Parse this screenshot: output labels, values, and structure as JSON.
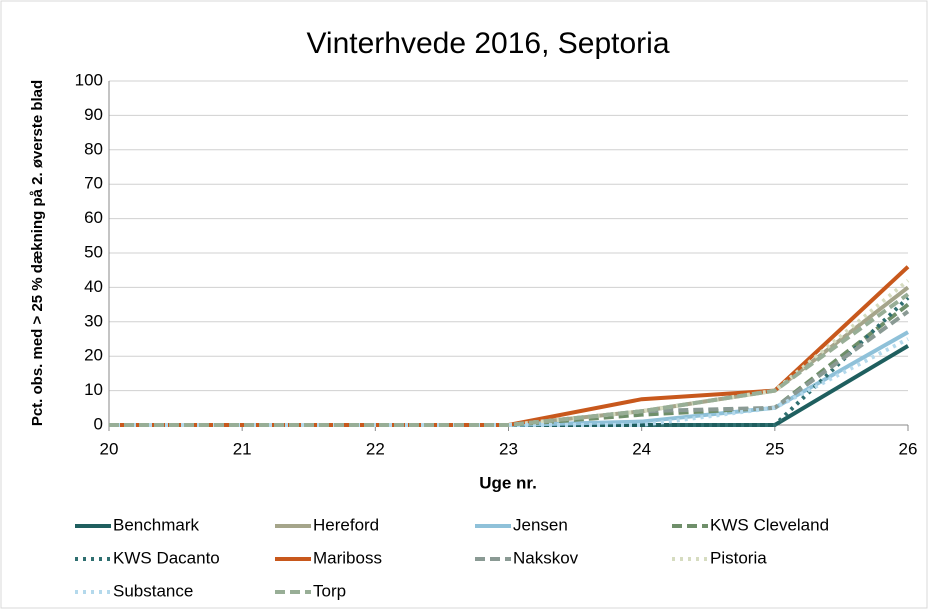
{
  "chart_data": {
    "type": "line",
    "title": "Vinterhvede 2016, Septoria",
    "xlabel": "Uge nr.",
    "ylabel": "Pct. obs. med > 25 % dækning på 2. øverste blad",
    "x": [
      20,
      21,
      22,
      23,
      24,
      25,
      26
    ],
    "xlim": [
      20,
      26
    ],
    "xticks": [
      20,
      21,
      22,
      23,
      24,
      25,
      26
    ],
    "ylim": [
      0,
      100
    ],
    "yticks": [
      0,
      10,
      20,
      30,
      40,
      50,
      60,
      70,
      80,
      90,
      100
    ],
    "grid": true,
    "legend": "bottom",
    "series": [
      {
        "name": "Benchmark",
        "color": "#1f5f5f",
        "dash": "solid",
        "values": [
          0,
          0,
          0,
          0,
          0,
          0,
          23
        ]
      },
      {
        "name": "Hereford",
        "color": "#a5a58a",
        "dash": "solid",
        "values": [
          0,
          0,
          0,
          0,
          4,
          10,
          40
        ]
      },
      {
        "name": "Jensen",
        "color": "#8fc1d9",
        "dash": "solid",
        "values": [
          0,
          0,
          0,
          0,
          1,
          5,
          27
        ]
      },
      {
        "name": "KWS Cleveland",
        "color": "#6f8f6a",
        "dash": "dashed",
        "values": [
          0,
          0,
          0,
          0,
          3,
          5,
          35
        ]
      },
      {
        "name": "KWS Dacanto",
        "color": "#2f6f70",
        "dash": "dotted",
        "values": [
          0,
          0,
          0,
          0,
          0,
          0,
          37
        ]
      },
      {
        "name": "Mariboss",
        "color": "#c8581c",
        "dash": "solid",
        "values": [
          0,
          0,
          0,
          0,
          7.5,
          10,
          46
        ]
      },
      {
        "name": "Nakskov",
        "color": "#8a9a94",
        "dash": "dashed",
        "values": [
          0,
          0,
          0,
          0,
          4,
          5,
          33
        ]
      },
      {
        "name": "Pistoria",
        "color": "#d6dcc0",
        "dash": "dotted",
        "values": [
          0,
          0,
          0,
          0,
          4,
          10,
          42
        ]
      },
      {
        "name": "Substance",
        "color": "#b4d9ec",
        "dash": "dotted",
        "values": [
          0,
          0,
          0,
          0,
          0,
          5,
          25
        ]
      },
      {
        "name": "Torp",
        "color": "#98ae96",
        "dash": "dashed",
        "values": [
          0,
          0,
          0,
          0,
          4,
          10,
          38
        ]
      }
    ]
  }
}
